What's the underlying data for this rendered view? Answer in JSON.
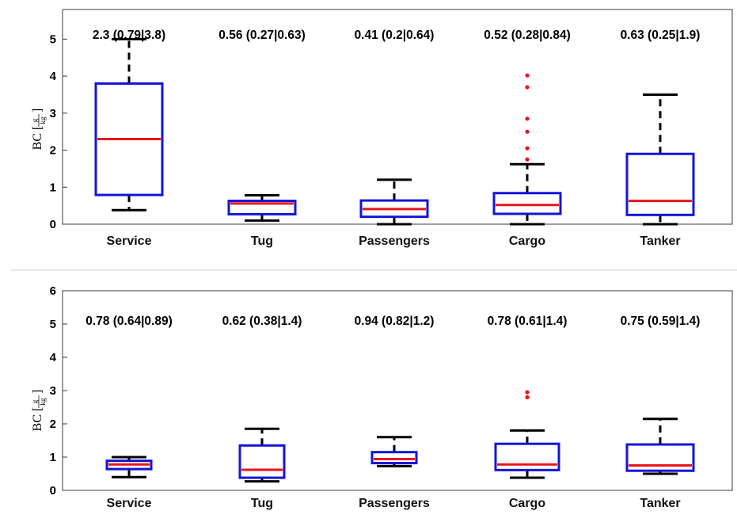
{
  "chart_data": [
    {
      "type": "box",
      "ylabel": {
        "main": "BC",
        "numerator": "g",
        "denominator": "kg"
      },
      "ylim": [
        0,
        5.8
      ],
      "yticks": [
        0,
        1,
        2,
        3,
        4,
        5
      ],
      "grid": false,
      "categories": [
        "Service",
        "Tug",
        "Passengers",
        "Cargo",
        "Tanker"
      ],
      "annotations": [
        "2.3 (0.79|3.8)",
        "0.56 (0.27|0.63)",
        "0.41 (0.2|0.64)",
        "0.52 (0.28|0.84)",
        "0.63 (0.25|1.9)"
      ],
      "boxes": [
        {
          "whisker_low": 0.38,
          "q1": 0.79,
          "median": 2.3,
          "q3": 3.8,
          "whisker_high": 5.0,
          "outliers": []
        },
        {
          "whisker_low": 0.1,
          "q1": 0.27,
          "median": 0.56,
          "q3": 0.63,
          "whisker_high": 0.78,
          "outliers": []
        },
        {
          "whisker_low": 0.0,
          "q1": 0.2,
          "median": 0.41,
          "q3": 0.64,
          "whisker_high": 1.2,
          "outliers": []
        },
        {
          "whisker_low": 0.0,
          "q1": 0.28,
          "median": 0.52,
          "q3": 0.84,
          "whisker_high": 1.62,
          "outliers": [
            1.75,
            2.05,
            2.5,
            2.85,
            3.7,
            4.02
          ]
        },
        {
          "whisker_low": 0.0,
          "q1": 0.25,
          "median": 0.63,
          "q3": 1.9,
          "whisker_high": 3.5,
          "outliers": []
        }
      ]
    },
    {
      "type": "box",
      "ylabel": {
        "main": "BC",
        "numerator": "g",
        "denominator": "kg"
      },
      "ylim": [
        0,
        6
      ],
      "yticks": [
        0,
        1,
        2,
        3,
        4,
        5,
        6
      ],
      "grid": false,
      "categories": [
        "Service",
        "Tug",
        "Passengers",
        "Cargo",
        "Tanker"
      ],
      "annotations": [
        "0.78 (0.64|0.89)",
        "0.62 (0.38|1.4)",
        "0.94 (0.82|1.2)",
        "0.78 (0.61|1.4)",
        "0.75 (0.59|1.4)"
      ],
      "boxes": [
        {
          "whisker_low": 0.4,
          "q1": 0.64,
          "median": 0.78,
          "q3": 0.89,
          "whisker_high": 1.0,
          "outliers": []
        },
        {
          "whisker_low": 0.27,
          "q1": 0.38,
          "median": 0.62,
          "q3": 1.35,
          "whisker_high": 1.85,
          "outliers": []
        },
        {
          "whisker_low": 0.73,
          "q1": 0.82,
          "median": 0.94,
          "q3": 1.15,
          "whisker_high": 1.6,
          "outliers": []
        },
        {
          "whisker_low": 0.38,
          "q1": 0.61,
          "median": 0.78,
          "q3": 1.4,
          "whisker_high": 1.8,
          "outliers": [
            2.8,
            2.95
          ]
        },
        {
          "whisker_low": 0.5,
          "q1": 0.59,
          "median": 0.75,
          "q3": 1.38,
          "whisker_high": 2.15,
          "outliers": []
        }
      ]
    }
  ],
  "colors": {
    "box": "#1414d8",
    "median": "#e8141e",
    "whisker": "#000000",
    "outlier": "#e8141e",
    "axis": "#3a3a3a",
    "separator": "#d0d0d0"
  }
}
